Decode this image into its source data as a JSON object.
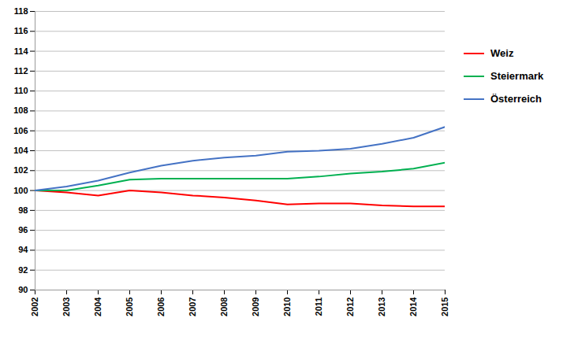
{
  "chart_data": {
    "type": "line",
    "x": [
      2002,
      2003,
      2004,
      2005,
      2006,
      2007,
      2008,
      2009,
      2010,
      2011,
      2012,
      2013,
      2014,
      2015
    ],
    "series": [
      {
        "name": "Weiz",
        "color": "#ff0000",
        "values": [
          100.0,
          99.8,
          99.5,
          100.0,
          99.8,
          99.5,
          99.3,
          99.0,
          98.6,
          98.7,
          98.7,
          98.5,
          98.4,
          98.4
        ]
      },
      {
        "name": "Steiermark",
        "color": "#00b050",
        "values": [
          100.0,
          100.0,
          100.5,
          101.1,
          101.2,
          101.2,
          101.2,
          101.2,
          101.2,
          101.4,
          101.7,
          101.9,
          102.2,
          102.8
        ]
      },
      {
        "name": "Österreich",
        "color": "#4472c4",
        "values": [
          100.0,
          100.4,
          101.0,
          101.8,
          102.5,
          103.0,
          103.3,
          103.5,
          103.9,
          104.0,
          104.2,
          104.7,
          105.3,
          106.4
        ]
      }
    ],
    "xlim": [
      2002,
      2015
    ],
    "xticks": [
      2002,
      2003,
      2004,
      2005,
      2006,
      2007,
      2008,
      2009,
      2010,
      2011,
      2012,
      2013,
      2014,
      2015
    ],
    "ylim": [
      90,
      118
    ],
    "yticks": [
      90,
      92,
      94,
      96,
      98,
      100,
      102,
      104,
      106,
      108,
      110,
      112,
      114,
      116,
      118
    ],
    "grid": true,
    "legend": "right"
  }
}
